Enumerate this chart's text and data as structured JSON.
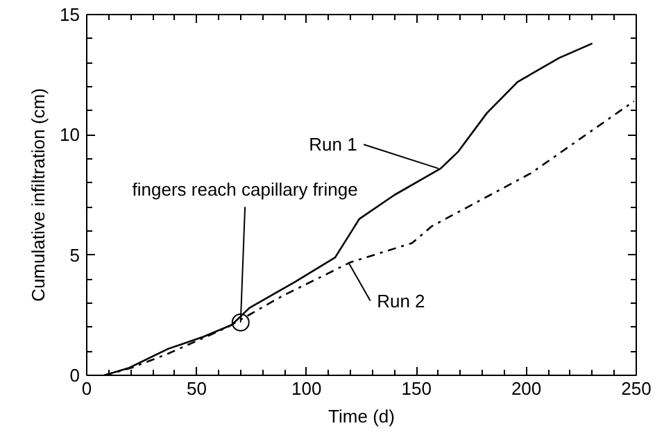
{
  "chart_data": {
    "type": "line",
    "xlabel": "Time (d)",
    "ylabel": "Cumulative infiltration (cm)",
    "xlim": [
      0,
      250
    ],
    "ylim": [
      0,
      15
    ],
    "xticks": [
      0,
      50,
      100,
      150,
      200,
      250
    ],
    "yticks": [
      0,
      5,
      10,
      15
    ],
    "grid": false,
    "marker": "none",
    "series": [
      {
        "name": "Run 1",
        "color": "#000000",
        "line_style": "solid",
        "x": [
          8,
          19,
          37,
          53,
          66,
          74,
          95,
          113,
          124,
          140,
          161,
          169,
          182,
          196,
          215,
          230
        ],
        "values": [
          0,
          0.3,
          1.1,
          1.6,
          2.1,
          2.8,
          3.9,
          4.9,
          6.5,
          7.5,
          8.6,
          9.3,
          10.9,
          12.2,
          13.2,
          13.8
        ]
      },
      {
        "name": "Run 2",
        "color": "#000000",
        "line_style": "dashdot",
        "x": [
          8,
          20,
          37,
          64,
          89,
          120,
          148,
          157,
          202,
          249
        ],
        "values": [
          0,
          0.3,
          0.9,
          2.0,
          3.3,
          4.7,
          5.5,
          6.2,
          8.4,
          11.4
        ]
      }
    ],
    "annotations": [
      {
        "text": "fingers reach capillary fringe",
        "x": 70,
        "y": 2.2
      }
    ]
  }
}
